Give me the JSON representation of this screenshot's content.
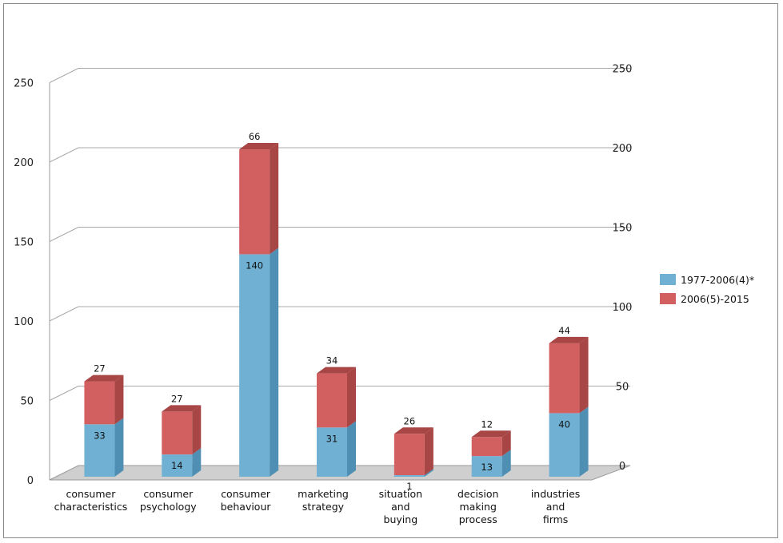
{
  "chart_data": {
    "type": "bar",
    "stacked": true,
    "three_d": true,
    "title": "",
    "xlabel": "",
    "ylabel": "",
    "ylim": [
      0,
      250
    ],
    "yticks": [
      "0",
      "50",
      "100",
      "150",
      "200",
      "250"
    ],
    "categories": [
      [
        "consumer",
        "characteristics"
      ],
      [
        "consumer",
        "psychology"
      ],
      [
        "consumer",
        "behaviour"
      ],
      [
        "marketing",
        "strategy"
      ],
      [
        "situation",
        "and",
        "buying"
      ],
      [
        "decision",
        "making",
        "process"
      ],
      [
        "industries",
        "and",
        "firms"
      ]
    ],
    "series": [
      {
        "name": "1977-2006(4)*",
        "values": [
          33,
          14,
          140,
          31,
          1,
          13,
          40
        ],
        "color": "#6fb0d3",
        "side_color": "#4f8fb3",
        "labels": [
          "33",
          "14",
          "140",
          "31",
          "1",
          "13",
          "40"
        ]
      },
      {
        "name": "2006(5)-2015",
        "values": [
          27,
          27,
          66,
          34,
          26,
          12,
          44
        ],
        "color": "#d26060",
        "side_color": "#a84545",
        "labels": [
          "27",
          "27",
          "66",
          "34",
          "26",
          "12",
          "44"
        ]
      }
    ],
    "grid": true,
    "legend_position": "right",
    "secondary_axis": true
  }
}
